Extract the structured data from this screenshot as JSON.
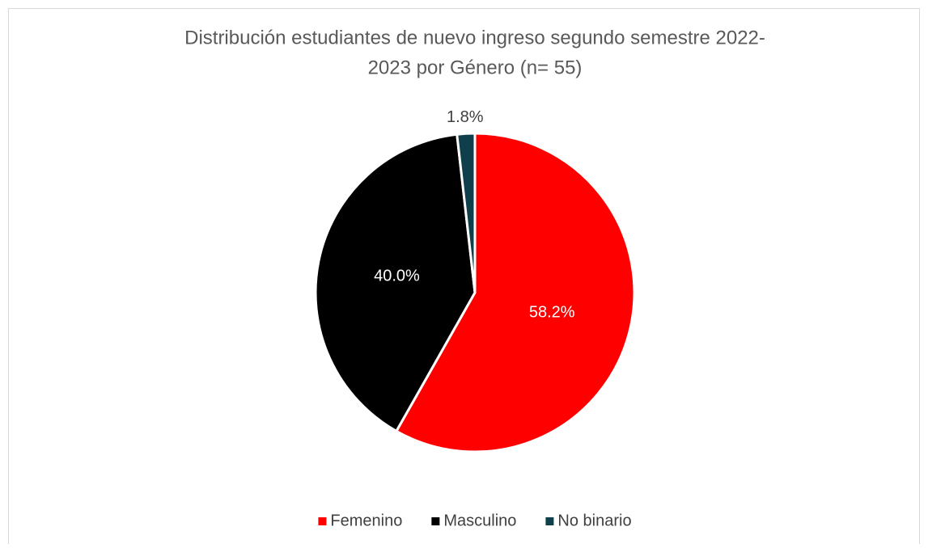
{
  "chart_data": {
    "type": "pie",
    "title": [
      "Distribución estudiantes de nuevo ingreso segundo semestre 2022-",
      "2023 por Género (n= 55)"
    ],
    "categories": [
      "Femenino",
      "Masculino",
      "No binario"
    ],
    "values": [
      58.2,
      40.0,
      1.8
    ],
    "value_labels": [
      "58.2%",
      "40.0%",
      "1.8%"
    ],
    "colors": [
      "#ff0000",
      "#000000",
      "#0e3f4a"
    ],
    "legend": "bottom"
  }
}
